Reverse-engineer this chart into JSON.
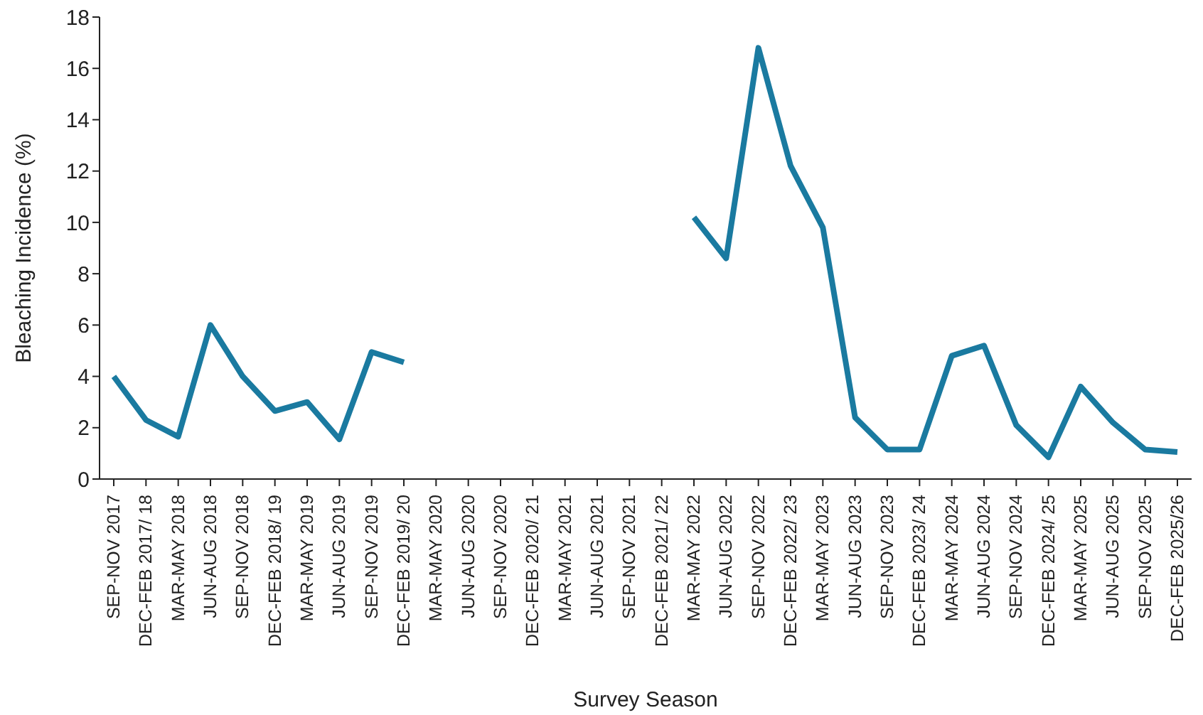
{
  "chart_data": {
    "type": "line",
    "xlabel": "Survey Season",
    "ylabel": "Bleaching Incidence (%)",
    "categories": [
      "SEP-NOV 2017",
      "DEC-FEB 2017/ 18",
      "MAR-MAY 2018",
      "JUN-AUG 2018",
      "SEP-NOV 2018",
      "DEC-FEB 2018/ 19",
      "MAR-MAY 2019",
      "JUN-AUG 2019",
      "SEP-NOV 2019",
      "DEC-FEB 2019/ 20",
      "MAR-MAY 2020",
      "JUN-AUG 2020",
      "SEP-NOV 2020",
      "DEC-FEB 2020/ 21",
      "MAR-MAY 2021",
      "JUN-AUG 2021",
      "SEP-NOV 2021",
      "DEC-FEB 2021/ 22",
      "MAR-MAY 2022",
      "JUN-AUG 2022",
      "SEP-NOV 2022",
      "DEC-FEB 2022/ 23",
      "MAR-MAY 2023",
      "JUN-AUG 2023",
      "SEP-NOV 2023",
      "DEC-FEB 2023/ 24",
      "MAR-MAY 2024",
      "JUN-AUG 2024",
      "SEP-NOV 2024",
      "DEC-FEB 2024/ 25",
      "MAR-MAY 2025",
      "JUN-AUG 2025",
      "SEP-NOV 2025",
      "DEC-FEB 2025/26"
    ],
    "series": [
      {
        "color": "#1a7aa0",
        "values": [
          4.0,
          2.3,
          1.65,
          6.0,
          4.0,
          2.65,
          3.0,
          1.55,
          4.95,
          4.55,
          null,
          null,
          null,
          null,
          null,
          null,
          null,
          null,
          10.2,
          8.6,
          16.8,
          12.2,
          9.8,
          2.4,
          1.15,
          1.15,
          4.8,
          5.2,
          2.1,
          0.85,
          3.6,
          2.2,
          1.15,
          1.05
        ]
      }
    ],
    "ylim": [
      0,
      18
    ],
    "yticks": [
      0,
      2,
      4,
      6,
      8,
      10,
      12,
      14,
      16,
      18
    ],
    "grid": false,
    "marker": "none",
    "line_style": "solid"
  }
}
